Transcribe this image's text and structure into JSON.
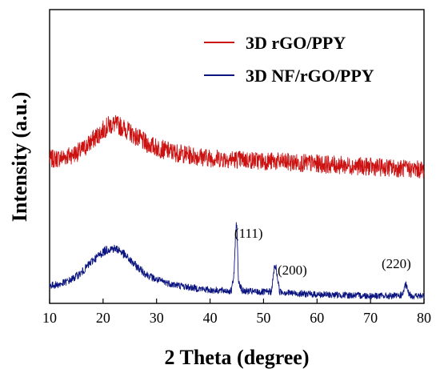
{
  "chart_data": {
    "type": "line",
    "xlabel": "2 Theta (degree)",
    "ylabel": "Intensity (a.u.)",
    "xlim": [
      10,
      80
    ],
    "xticks": [
      10,
      20,
      30,
      40,
      50,
      60,
      70,
      80
    ],
    "ylim": [
      0,
      100
    ],
    "grid": false,
    "legend_placement": "top-right",
    "series": [
      {
        "name": "3D rGO/PPY",
        "color": "#cc1111",
        "x": [
          10,
          12,
          14,
          16,
          18,
          20,
          21,
          22,
          23,
          24,
          26,
          28,
          30,
          33,
          36,
          40,
          45,
          50,
          55,
          60,
          65,
          70,
          75,
          80
        ],
        "y": [
          49,
          49.5,
          50.5,
          52,
          55.5,
          59,
          60.5,
          61,
          60.5,
          59.5,
          57,
          54.5,
          53,
          51.5,
          50.5,
          49.5,
          49,
          48.5,
          48,
          47.5,
          47,
          46.5,
          46,
          45.5
        ]
      },
      {
        "name": "3D NF/rGO/PPY",
        "color": "#0c1580",
        "x": [
          10,
          12,
          14,
          16,
          18,
          20,
          21,
          22,
          23,
          24,
          26,
          28,
          30,
          33,
          36,
          40,
          44,
          44.5,
          44.8,
          45,
          45.3,
          46,
          50,
          51.5,
          52,
          52.3,
          53,
          55,
          60,
          65,
          70,
          75,
          76,
          76.6,
          77.2,
          78,
          80
        ],
        "y": [
          6,
          6.5,
          8,
          10.5,
          14.5,
          17.5,
          18.5,
          18.7,
          18.2,
          16.5,
          13,
          10,
          8,
          6.5,
          5.5,
          4.5,
          4.2,
          10,
          26,
          27,
          8,
          4.2,
          3.8,
          4,
          12,
          12.5,
          4,
          3.5,
          3,
          2.8,
          2.6,
          2.5,
          3,
          6.5,
          3,
          2.5,
          2.5
        ]
      }
    ],
    "annotations": [
      "(111)",
      "(200)",
      "(220)"
    ]
  }
}
